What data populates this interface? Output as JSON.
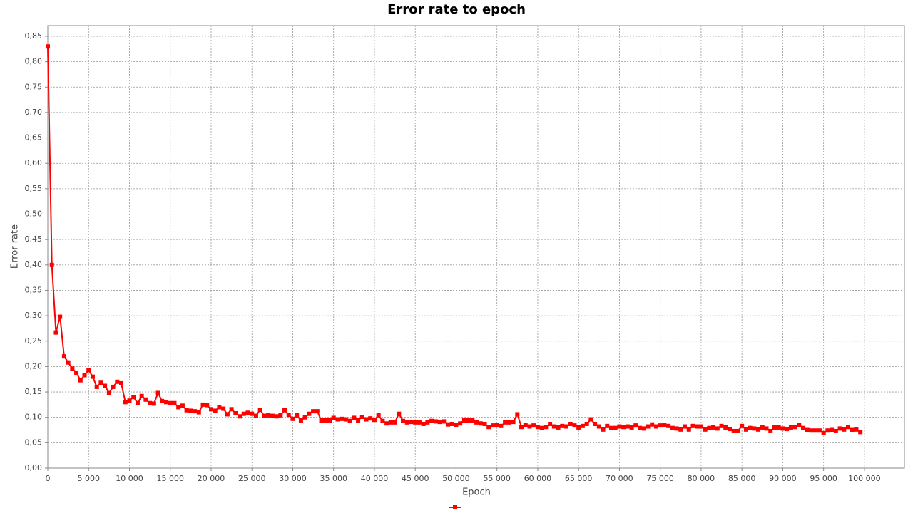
{
  "chart_data": {
    "type": "line",
    "title": "Error rate to epoch",
    "x_label": "Epoch",
    "y_label": "Error rate",
    "x": [
      0,
      500,
      1000,
      1500,
      2000,
      2500,
      3000,
      3500,
      4000,
      4500,
      5000,
      5500,
      6000,
      6500,
      7000,
      7500,
      8000,
      8500,
      9000,
      9500,
      10000,
      10500,
      11000,
      11500,
      12000,
      12500,
      13000,
      13500,
      14000,
      14500,
      15000,
      15500,
      16000,
      16500,
      17000,
      17500,
      18000,
      18500,
      19000,
      19500,
      20000,
      20500,
      21000,
      21500,
      22000,
      22500,
      23000,
      23500,
      24000,
      24500,
      25000,
      25500,
      26000,
      26500,
      27000,
      27500,
      28000,
      28500,
      29000,
      29500,
      30000,
      30500,
      31000,
      31500,
      32000,
      32500,
      33000,
      33500,
      34000,
      34500,
      35000,
      35500,
      36000,
      36500,
      37000,
      37500,
      38000,
      38500,
      39000,
      39500,
      40000,
      40500,
      41000,
      41500,
      42000,
      42500,
      43000,
      43500,
      44000,
      44500,
      45000,
      45500,
      46000,
      46500,
      47000,
      47500,
      48000,
      48500,
      49000,
      49500,
      50000,
      50500,
      51000,
      51500,
      52000,
      52500,
      53000,
      53500,
      54000,
      54500,
      55000,
      55500,
      56000,
      56500,
      57000,
      57500,
      58000,
      58500,
      59000,
      59500,
      60000,
      60500,
      61000,
      61500,
      62000,
      62500,
      63000,
      63500,
      64000,
      64500,
      65000,
      65500,
      66000,
      66500,
      67000,
      67500,
      68000,
      68500,
      69000,
      69500,
      70000,
      70500,
      71000,
      71500,
      72000,
      72500,
      73000,
      73500,
      74000,
      74500,
      75000,
      75500,
      76000,
      76500,
      77000,
      77500,
      78000,
      78500,
      79000,
      79500,
      80000,
      80500,
      81000,
      81500,
      82000,
      82500,
      83000,
      83500,
      84000,
      84500,
      85000,
      85500,
      86000,
      86500,
      87000,
      87500,
      88000,
      88500,
      89000,
      89500,
      90000,
      90500,
      91000,
      91500,
      92000,
      92500,
      93000,
      93500,
      94000,
      94500,
      95000,
      95500,
      96000,
      96500,
      97000,
      97500,
      98000,
      98500,
      99000,
      99500
    ],
    "series": [
      {
        "color": "#ff0000",
        "values": [
          0.83,
          0.4,
          0.267,
          0.298,
          0.22,
          0.208,
          0.196,
          0.188,
          0.173,
          0.183,
          0.193,
          0.18,
          0.16,
          0.168,
          0.162,
          0.148,
          0.16,
          0.17,
          0.167,
          0.13,
          0.133,
          0.14,
          0.128,
          0.142,
          0.135,
          0.128,
          0.127,
          0.148,
          0.132,
          0.13,
          0.128,
          0.128,
          0.12,
          0.123,
          0.114,
          0.113,
          0.112,
          0.11,
          0.125,
          0.124,
          0.116,
          0.113,
          0.12,
          0.117,
          0.106,
          0.116,
          0.108,
          0.102,
          0.107,
          0.109,
          0.107,
          0.103,
          0.115,
          0.103,
          0.104,
          0.103,
          0.102,
          0.104,
          0.114,
          0.105,
          0.097,
          0.104,
          0.094,
          0.1,
          0.107,
          0.112,
          0.112,
          0.094,
          0.094,
          0.094,
          0.099,
          0.096,
          0.097,
          0.096,
          0.093,
          0.099,
          0.094,
          0.101,
          0.096,
          0.098,
          0.095,
          0.104,
          0.093,
          0.088,
          0.09,
          0.09,
          0.107,
          0.093,
          0.09,
          0.091,
          0.09,
          0.09,
          0.087,
          0.09,
          0.093,
          0.092,
          0.091,
          0.092,
          0.086,
          0.087,
          0.085,
          0.088,
          0.094,
          0.094,
          0.094,
          0.09,
          0.088,
          0.087,
          0.081,
          0.084,
          0.085,
          0.083,
          0.09,
          0.09,
          0.091,
          0.106,
          0.081,
          0.085,
          0.082,
          0.084,
          0.081,
          0.079,
          0.081,
          0.087,
          0.082,
          0.08,
          0.083,
          0.082,
          0.087,
          0.084,
          0.08,
          0.083,
          0.087,
          0.096,
          0.087,
          0.082,
          0.076,
          0.083,
          0.079,
          0.079,
          0.082,
          0.081,
          0.082,
          0.08,
          0.084,
          0.079,
          0.078,
          0.082,
          0.086,
          0.082,
          0.084,
          0.085,
          0.083,
          0.079,
          0.078,
          0.076,
          0.082,
          0.076,
          0.083,
          0.082,
          0.082,
          0.076,
          0.079,
          0.08,
          0.078,
          0.083,
          0.08,
          0.077,
          0.073,
          0.073,
          0.083,
          0.076,
          0.079,
          0.078,
          0.076,
          0.08,
          0.078,
          0.073,
          0.08,
          0.08,
          0.078,
          0.077,
          0.08,
          0.081,
          0.085,
          0.079,
          0.075,
          0.074,
          0.074,
          0.074,
          0.069,
          0.074,
          0.075,
          0.073,
          0.078,
          0.076,
          0.081,
          0.075,
          0.076,
          0.071
        ]
      }
    ],
    "xlim": [
      0,
      104900
    ],
    "ylim": [
      0,
      0.871
    ],
    "xticks": [
      0,
      {
        "value": 5000,
        "label": "5 000"
      },
      {
        "value": 10000,
        "label": "10 000"
      },
      {
        "value": 15000,
        "label": "15 000"
      },
      {
        "value": 20000,
        "label": "20 000"
      },
      {
        "value": 25000,
        "label": "25 000"
      },
      {
        "value": 30000,
        "label": "30 000"
      },
      {
        "value": 35000,
        "label": "35 000"
      },
      {
        "value": 40000,
        "label": "40 000"
      },
      {
        "value": 45000,
        "label": "45 000"
      },
      {
        "value": 50000,
        "label": "50 000"
      },
      {
        "value": 55000,
        "label": "55 000"
      },
      {
        "value": 60000,
        "label": "60 000"
      },
      {
        "value": 65000,
        "label": "65 000"
      },
      {
        "value": 70000,
        "label": "70 000"
      },
      {
        "value": 75000,
        "label": "75 000"
      },
      {
        "value": 80000,
        "label": "80 000"
      },
      {
        "value": 85000,
        "label": "85 000"
      },
      {
        "value": 90000,
        "label": "90 000"
      },
      {
        "value": 95000,
        "label": "95 000"
      },
      {
        "value": 100000,
        "label": "100 000"
      }
    ],
    "yticks": [
      {
        "value": 0,
        "label": "0,00"
      },
      {
        "value": 0.05,
        "label": "0,05"
      },
      {
        "value": 0.1,
        "label": "0,10"
      },
      {
        "value": 0.15,
        "label": "0,15"
      },
      {
        "value": 0.2,
        "label": "0,20"
      },
      {
        "value": 0.25,
        "label": "0,25"
      },
      {
        "value": 0.3,
        "label": "0,30"
      },
      {
        "value": 0.35,
        "label": "0,35"
      },
      {
        "value": 0.4,
        "label": "0,40"
      },
      {
        "value": 0.45,
        "label": "0,45"
      },
      {
        "value": 0.5,
        "label": "0,50"
      },
      {
        "value": 0.55,
        "label": "0,55"
      },
      {
        "value": 0.6,
        "label": "0,60"
      },
      {
        "value": 0.65,
        "label": "0,65"
      },
      {
        "value": 0.7,
        "label": "0,70"
      },
      {
        "value": 0.75,
        "label": "0,75"
      },
      {
        "value": 0.8,
        "label": "0,80"
      },
      {
        "value": 0.85,
        "label": "0,85"
      }
    ],
    "grid": true,
    "legend": "bottom"
  }
}
